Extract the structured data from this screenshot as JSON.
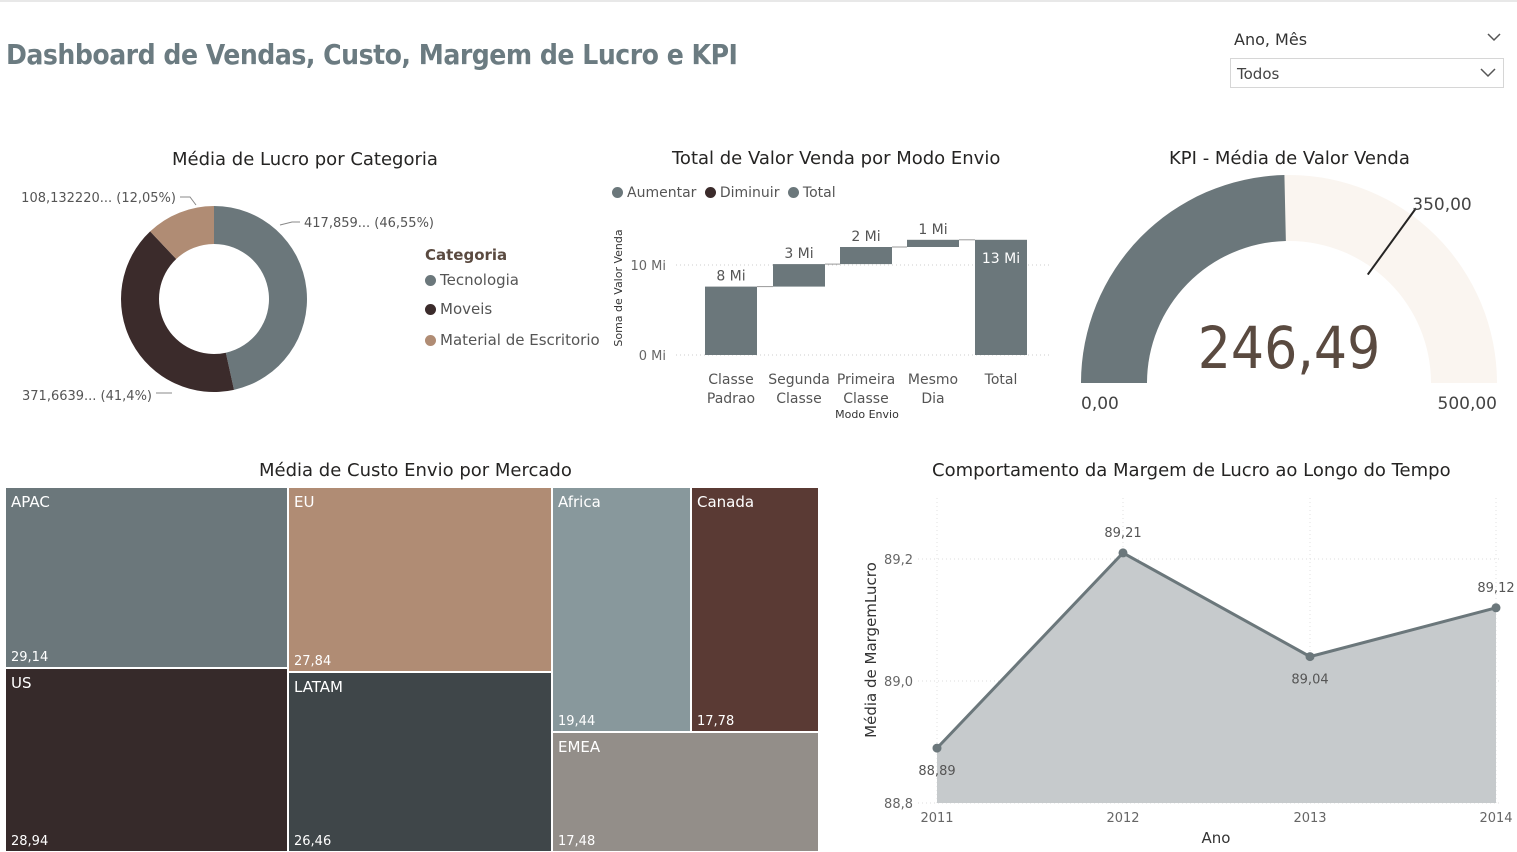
{
  "header": {
    "title": "Dashboard de Vendas, Custo, Margem de Lucro e KPI"
  },
  "slicer": {
    "label": "Ano, Mês",
    "value": "Todos"
  },
  "colors": {
    "tecnologia": "#6b777b",
    "moveis": "#3b2b2b",
    "material": "#b08c74",
    "aumentar": "#6b777b",
    "gauge_fill": "#6b777b",
    "gauge_bg": "#faf5f0",
    "area": "#c6cacc",
    "line": "#6b777b"
  },
  "donut": {
    "title": "Média de Lucro por Categoria",
    "legend_title": "Categoria",
    "labels": {
      "tecnologia": "417,859... (46,55%)",
      "moveis": "371,6639... (41,4%)",
      "material": "108,132220... (12,05%)"
    },
    "chart_data": {
      "type": "pie",
      "categories": [
        "Tecnologia",
        "Moveis",
        "Material de Escritorio"
      ],
      "values": [
        417.859,
        371.6639,
        108.13222
      ],
      "percents": [
        46.55,
        41.4,
        12.05
      ]
    }
  },
  "waterfall": {
    "title": "Total de Valor Venda por Modo Envio",
    "legend": [
      "Aumentar",
      "Diminuir",
      "Total"
    ],
    "ylabel": "Soma de Valor Venda",
    "xlabel": "Modo Envio",
    "yticks": [
      "0 Mi",
      "10 Mi"
    ],
    "categories": [
      [
        "Classe",
        "Padrao"
      ],
      [
        "Segunda",
        "Classe"
      ],
      [
        "Primeira",
        "Classe"
      ],
      [
        "Mesmo",
        "Dia"
      ],
      [
        "Total"
      ]
    ],
    "data_labels": [
      "8 Mi",
      "3 Mi",
      "2 Mi",
      "1 Mi",
      "13 Mi"
    ],
    "chart_data": {
      "type": "bar",
      "subtype": "waterfall",
      "categories": [
        "Classe Padrao",
        "Segunda Classe",
        "Primeira Classe",
        "Mesmo Dia",
        "Total"
      ],
      "values": [
        7.6,
        2.5,
        1.9,
        0.8,
        12.8
      ],
      "ylim": [
        0,
        15
      ]
    }
  },
  "gauge": {
    "title": "KPI - Média de Valor Venda",
    "value_label": "246,49",
    "min_label": "0,00",
    "max_label": "500,00",
    "target_label": "350,00",
    "chart_data": {
      "type": "gauge",
      "value": 246.49,
      "min": 0,
      "max": 500,
      "target": 350
    }
  },
  "treemap": {
    "title": "Média de Custo Envio por Mercado",
    "items": [
      {
        "name": "APAC",
        "value": "29,14",
        "color": "#6b777b"
      },
      {
        "name": "US",
        "value": "28,94",
        "color": "#362a2a"
      },
      {
        "name": "EU",
        "value": "27,84",
        "color": "#b08c74"
      },
      {
        "name": "LATAM",
        "value": "26,46",
        "color": "#3f4649"
      },
      {
        "name": "Africa",
        "value": "19,44",
        "color": "#88989c"
      },
      {
        "name": "Canada",
        "value": "17,78",
        "color": "#5a3a34"
      },
      {
        "name": "EMEA",
        "value": "17,48",
        "color": "#938e89"
      }
    ],
    "chart_data": {
      "type": "treemap",
      "categories": [
        "APAC",
        "US",
        "EU",
        "LATAM",
        "Africa",
        "Canada",
        "EMEA"
      ],
      "values": [
        29.14,
        28.94,
        27.84,
        26.46,
        19.44,
        17.78,
        17.48
      ]
    }
  },
  "line": {
    "title": "Comportamento da Margem de Lucro ao Longo do Tempo",
    "xlabel": "Ano",
    "ylabel": "Média de MargemLucro",
    "yticks": [
      "88,8",
      "89,0",
      "89,2"
    ],
    "xticks": [
      "2011",
      "2012",
      "2013",
      "2014"
    ],
    "data_labels": [
      "88,89",
      "89,21",
      "89,04",
      "89,12"
    ],
    "chart_data": {
      "type": "area",
      "x": [
        2011,
        2012,
        2013,
        2014
      ],
      "values": [
        88.89,
        89.21,
        89.04,
        89.12
      ],
      "ylim": [
        88.8,
        89.3
      ]
    }
  }
}
